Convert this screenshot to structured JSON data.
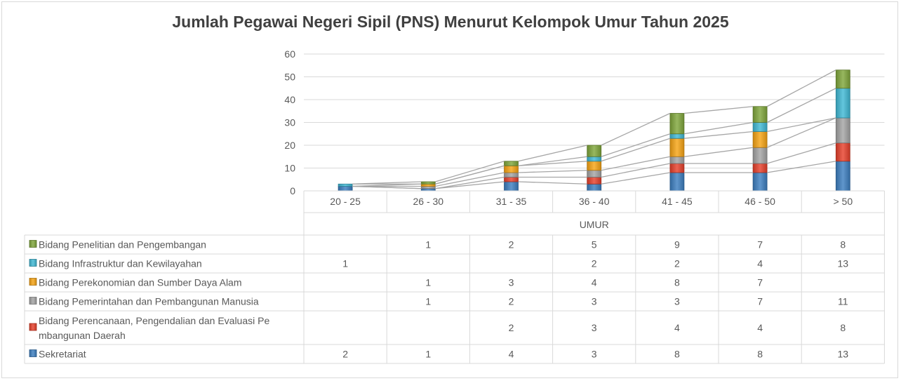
{
  "chart_data": {
    "type": "bar",
    "subtype": "stacked-with-series-lines-and-data-table",
    "title": "Jumlah Pegawai Negeri Sipil (PNS) Menurut Kelompok Umur Tahun 2025",
    "xlabel": "UMUR",
    "ylabel": "",
    "ylim": [
      0,
      60
    ],
    "yticks": [
      0,
      10,
      20,
      30,
      40,
      50,
      60
    ],
    "grid": true,
    "legend": "data-table-left",
    "categories": [
      "20 - 25",
      "26 - 30",
      "31 - 35",
      "36 - 40",
      "41 - 45",
      "46 - 50",
      "> 50"
    ],
    "series": [
      {
        "name": "Sekretariat",
        "color": "#3d7fc1",
        "values": [
          2,
          1,
          4,
          3,
          8,
          8,
          13
        ]
      },
      {
        "name": "Bidang Perencanaan, Pengendalian dan Evaluasi Pembangunan Daerah",
        "color": "#e8412c",
        "values": [
          null,
          null,
          2,
          3,
          4,
          4,
          8
        ]
      },
      {
        "name": "Bidang Pemerintahan dan Pembangunan Manusia",
        "color": "#a5a5a5",
        "values": [
          null,
          1,
          2,
          3,
          3,
          7,
          11
        ]
      },
      {
        "name": "Bidang Perekonomian dan Sumber Daya Alam",
        "color": "#f7a515",
        "values": [
          null,
          1,
          3,
          4,
          8,
          7,
          null
        ]
      },
      {
        "name": "Bidang Infrastruktur dan Kewilayahan",
        "color": "#41b9d6",
        "values": [
          1,
          null,
          null,
          2,
          2,
          4,
          13
        ]
      },
      {
        "name": "Bidang Penelitian dan Pengembangan",
        "color": "#80a73c",
        "values": [
          null,
          1,
          2,
          5,
          9,
          7,
          8
        ]
      }
    ],
    "table_labels": [
      "Bidang Penelitian dan Pengembangan",
      "Bidang Infrastruktur dan Kewilayahan",
      "Bidang Perekonomian dan Sumber Daya Alam",
      "Bidang Pemerintahan dan Pembangunan Manusia",
      [
        "Bidang Perencanaan, Pengendalian dan Evaluasi Pe",
        "mbangunan Daerah"
      ],
      "Sekretariat"
    ]
  }
}
